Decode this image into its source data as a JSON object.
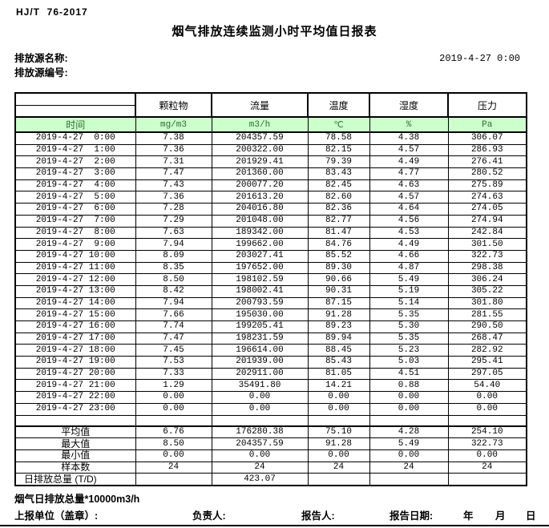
{
  "header": {
    "standard": "HJ/T  76-2017",
    "title": "烟气排放连续监测小时平均值日报表",
    "source_name_label": "排放源名称:",
    "source_id_label": "排放源编号:",
    "datetime": "2019-4-27 0:00"
  },
  "colors": {
    "band_fill": "#ccffcc",
    "band_text": "#2f6b2f",
    "border": "#000000"
  },
  "table": {
    "time_label": "时间",
    "columns": [
      "颗粒物",
      "流量",
      "温度",
      "湿度",
      "压力"
    ],
    "units": [
      "mg/m3",
      "m3/h",
      "℃",
      "%",
      "Pa"
    ],
    "rows": [
      {
        "time": "2019-4-27  0:00",
        "values": [
          "7.38",
          "204357.59",
          "78.58",
          "4.38",
          "306.07"
        ]
      },
      {
        "time": "2019-4-27  1:00",
        "values": [
          "7.36",
          "200322.00",
          "82.15",
          "4.57",
          "286.93"
        ]
      },
      {
        "time": "2019-4-27  2:00",
        "values": [
          "7.31",
          "201929.41",
          "79.39",
          "4.49",
          "276.41"
        ]
      },
      {
        "time": "2019-4-27  3:00",
        "values": [
          "7.47",
          "201360.00",
          "83.43",
          "4.77",
          "280.52"
        ]
      },
      {
        "time": "2019-4-27  4:00",
        "values": [
          "7.43",
          "200077.20",
          "82.45",
          "4.63",
          "275.89"
        ]
      },
      {
        "time": "2019-4-27  5:00",
        "values": [
          "7.36",
          "201613.20",
          "82.60",
          "4.57",
          "274.63"
        ]
      },
      {
        "time": "2019-4-27  6:00",
        "values": [
          "7.28",
          "204016.80",
          "82.36",
          "4.64",
          "274.05"
        ]
      },
      {
        "time": "2019-4-27  7:00",
        "values": [
          "7.29",
          "201048.00",
          "82.77",
          "4.56",
          "274.94"
        ]
      },
      {
        "time": "2019-4-27  8:00",
        "values": [
          "7.63",
          "189342.00",
          "81.47",
          "4.53",
          "242.84"
        ]
      },
      {
        "time": "2019-4-27  9:00",
        "values": [
          "7.94",
          "199662.00",
          "84.76",
          "4.49",
          "301.50"
        ]
      },
      {
        "time": "2019-4-27 10:00",
        "values": [
          "8.09",
          "203027.41",
          "85.52",
          "4.66",
          "322.73"
        ]
      },
      {
        "time": "2019-4-27 11:00",
        "values": [
          "8.35",
          "197652.00",
          "89.30",
          "4.87",
          "298.38"
        ]
      },
      {
        "time": "2019-4-27 12:00",
        "values": [
          "8.50",
          "198102.59",
          "90.66",
          "5.49",
          "306.24"
        ]
      },
      {
        "time": "2019-4-27 13:00",
        "values": [
          "8.42",
          "198002.41",
          "90.31",
          "5.19",
          "305.22"
        ]
      },
      {
        "time": "2019-4-27 14:00",
        "values": [
          "7.94",
          "200793.59",
          "87.15",
          "5.14",
          "301.80"
        ]
      },
      {
        "time": "2019-4-27 15:00",
        "values": [
          "7.66",
          "195030.00",
          "91.28",
          "5.35",
          "281.55"
        ]
      },
      {
        "time": "2019-4-27 16:00",
        "values": [
          "7.74",
          "199205.41",
          "89.23",
          "5.30",
          "290.50"
        ]
      },
      {
        "time": "2019-4-27 17:00",
        "values": [
          "7.47",
          "198231.59",
          "89.94",
          "5.35",
          "268.47"
        ]
      },
      {
        "time": "2019-4-27 18:00",
        "values": [
          "7.45",
          "196614.00",
          "88.45",
          "5.23",
          "282.92"
        ]
      },
      {
        "time": "2019-4-27 19:00",
        "values": [
          "7.53",
          "201939.00",
          "85.43",
          "5.03",
          "295.41"
        ]
      },
      {
        "time": "2019-4-27 20:00",
        "values": [
          "7.33",
          "202911.00",
          "81.05",
          "4.51",
          "297.05"
        ]
      },
      {
        "time": "2019-4-27 21:00",
        "values": [
          "1.29",
          "35491.80",
          "14.21",
          "0.88",
          "54.40"
        ]
      },
      {
        "time": "2019-4-27 22:00",
        "values": [
          "0.00",
          "0.00",
          "0.00",
          "0.00",
          "0.00"
        ]
      },
      {
        "time": "2019-4-27 23:00",
        "values": [
          "0.00",
          "0.00",
          "0.00",
          "0.00",
          "0.00"
        ]
      }
    ],
    "summary": [
      {
        "label": "平均值",
        "left_align": false,
        "values": [
          "6.76",
          "176280.38",
          "75.10",
          "4.28",
          "254.10"
        ]
      },
      {
        "label": "最大值",
        "left_align": false,
        "values": [
          "8.50",
          "204357.59",
          "91.28",
          "5.49",
          "322.73"
        ]
      },
      {
        "label": "最小值",
        "left_align": false,
        "values": [
          "0.00",
          "0.00",
          "0.00",
          "0.00",
          "0.00"
        ]
      },
      {
        "label": "样本数",
        "left_align": false,
        "values": [
          "24",
          "24",
          "24",
          "24",
          "24"
        ]
      },
      {
        "label": "日排放总量 (T/D)",
        "left_align": true,
        "values": [
          "",
          "423.07",
          "",
          "",
          ""
        ]
      }
    ]
  },
  "footer": {
    "note": "烟气日排放总量*10000m3/h",
    "report_unit_label": "上报单位（盖章）:",
    "responsible_label": "负责人:",
    "reporter_label": "报告人:",
    "report_date_label": "报告日期:",
    "year_label": "年",
    "month_label": "月",
    "day_label": "日"
  }
}
